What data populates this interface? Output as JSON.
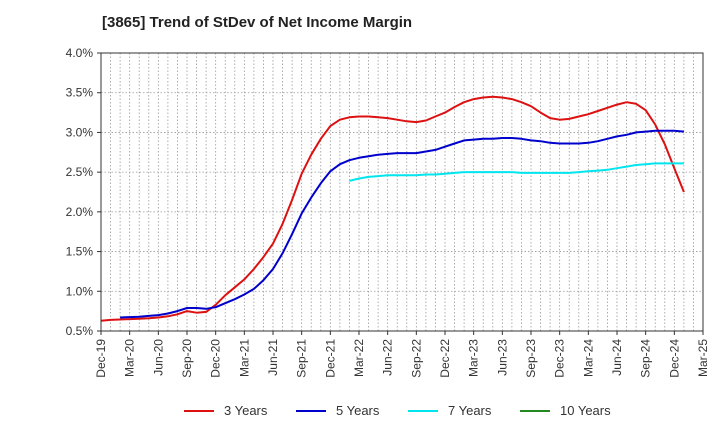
{
  "chart_data": {
    "type": "line",
    "title": "[3865]  Trend of StDev of Net Income Margin",
    "xlabel": "",
    "ylabel": "",
    "x_ticks": [
      "Dec-19",
      "Mar-20",
      "Jun-20",
      "Sep-20",
      "Dec-20",
      "Mar-21",
      "Jun-21",
      "Sep-21",
      "Dec-21",
      "Mar-22",
      "Jun-22",
      "Sep-22",
      "Dec-22",
      "Mar-23",
      "Jun-23",
      "Sep-23",
      "Dec-23",
      "Mar-24",
      "Jun-24",
      "Sep-24",
      "Dec-24",
      "Mar-25"
    ],
    "y_ticks": [
      "0.5%",
      "1.0%",
      "1.5%",
      "2.0%",
      "2.5%",
      "3.0%",
      "3.5%",
      "4.0%"
    ],
    "y_tick_values": [
      0.5,
      1.0,
      1.5,
      2.0,
      2.5,
      3.0,
      3.5,
      4.0
    ],
    "ylim": [
      0.5,
      4.0
    ],
    "grid": true,
    "legend_position": "bottom",
    "series": [
      {
        "name": "3 Years",
        "color": "#dd1111",
        "points": [
          [
            "Dec-19",
            0.63
          ],
          [
            "Jan-20",
            0.64
          ],
          [
            "Feb-20",
            0.645
          ],
          [
            "Mar-20",
            0.65
          ],
          [
            "Apr-20",
            0.655
          ],
          [
            "May-20",
            0.66
          ],
          [
            "Jun-20",
            0.67
          ],
          [
            "Jul-20",
            0.685
          ],
          [
            "Aug-20",
            0.71
          ],
          [
            "Sep-20",
            0.75
          ],
          [
            "Oct-20",
            0.73
          ],
          [
            "Nov-20",
            0.74
          ],
          [
            "Dec-20",
            0.83
          ],
          [
            "Jan-21",
            0.95
          ],
          [
            "Feb-21",
            1.05
          ],
          [
            "Mar-21",
            1.15
          ],
          [
            "Apr-21",
            1.28
          ],
          [
            "May-21",
            1.43
          ],
          [
            "Jun-21",
            1.6
          ],
          [
            "Jul-21",
            1.85
          ],
          [
            "Aug-21",
            2.15
          ],
          [
            "Sep-21",
            2.48
          ],
          [
            "Oct-21",
            2.72
          ],
          [
            "Nov-21",
            2.92
          ],
          [
            "Dec-21",
            3.08
          ],
          [
            "Jan-22",
            3.16
          ],
          [
            "Feb-22",
            3.19
          ],
          [
            "Mar-22",
            3.2
          ],
          [
            "Apr-22",
            3.2
          ],
          [
            "May-22",
            3.19
          ],
          [
            "Jun-22",
            3.18
          ],
          [
            "Jul-22",
            3.16
          ],
          [
            "Aug-22",
            3.14
          ],
          [
            "Sep-22",
            3.13
          ],
          [
            "Oct-22",
            3.15
          ],
          [
            "Nov-22",
            3.2
          ],
          [
            "Dec-22",
            3.25
          ],
          [
            "Jan-23",
            3.32
          ],
          [
            "Feb-23",
            3.38
          ],
          [
            "Mar-23",
            3.42
          ],
          [
            "Apr-23",
            3.44
          ],
          [
            "May-23",
            3.45
          ],
          [
            "Jun-23",
            3.44
          ],
          [
            "Jul-23",
            3.42
          ],
          [
            "Aug-23",
            3.38
          ],
          [
            "Sep-23",
            3.33
          ],
          [
            "Oct-23",
            3.25
          ],
          [
            "Nov-23",
            3.18
          ],
          [
            "Dec-23",
            3.16
          ],
          [
            "Jan-24",
            3.17
          ],
          [
            "Feb-24",
            3.2
          ],
          [
            "Mar-24",
            3.23
          ],
          [
            "Apr-24",
            3.27
          ],
          [
            "May-24",
            3.31
          ],
          [
            "Jun-24",
            3.35
          ],
          [
            "Jul-24",
            3.38
          ],
          [
            "Aug-24",
            3.36
          ],
          [
            "Sep-24",
            3.28
          ],
          [
            "Oct-24",
            3.1
          ],
          [
            "Nov-24",
            2.85
          ],
          [
            "Dec-24",
            2.55
          ],
          [
            "Jan-25",
            2.25
          ]
        ]
      },
      {
        "name": "5 Years",
        "color": "#0000cc",
        "points": [
          [
            "Feb-20",
            0.67
          ],
          [
            "Mar-20",
            0.675
          ],
          [
            "Apr-20",
            0.68
          ],
          [
            "May-20",
            0.69
          ],
          [
            "Jun-20",
            0.7
          ],
          [
            "Jul-20",
            0.72
          ],
          [
            "Aug-20",
            0.75
          ],
          [
            "Sep-20",
            0.79
          ],
          [
            "Oct-20",
            0.79
          ],
          [
            "Nov-20",
            0.78
          ],
          [
            "Dec-20",
            0.8
          ],
          [
            "Jan-21",
            0.85
          ],
          [
            "Feb-21",
            0.9
          ],
          [
            "Mar-21",
            0.96
          ],
          [
            "Apr-21",
            1.03
          ],
          [
            "May-21",
            1.14
          ],
          [
            "Jun-21",
            1.28
          ],
          [
            "Jul-21",
            1.48
          ],
          [
            "Aug-21",
            1.72
          ],
          [
            "Sep-21",
            1.98
          ],
          [
            "Oct-21",
            2.18
          ],
          [
            "Nov-21",
            2.36
          ],
          [
            "Dec-21",
            2.51
          ],
          [
            "Jan-22",
            2.6
          ],
          [
            "Feb-22",
            2.65
          ],
          [
            "Mar-22",
            2.68
          ],
          [
            "Apr-22",
            2.7
          ],
          [
            "May-22",
            2.72
          ],
          [
            "Jun-22",
            2.73
          ],
          [
            "Jul-22",
            2.74
          ],
          [
            "Aug-22",
            2.74
          ],
          [
            "Sep-22",
            2.74
          ],
          [
            "Oct-22",
            2.76
          ],
          [
            "Nov-22",
            2.78
          ],
          [
            "Dec-22",
            2.82
          ],
          [
            "Jan-23",
            2.86
          ],
          [
            "Feb-23",
            2.9
          ],
          [
            "Mar-23",
            2.91
          ],
          [
            "Apr-23",
            2.92
          ],
          [
            "May-23",
            2.92
          ],
          [
            "Jun-23",
            2.93
          ],
          [
            "Jul-23",
            2.93
          ],
          [
            "Aug-23",
            2.92
          ],
          [
            "Sep-23",
            2.9
          ],
          [
            "Oct-23",
            2.89
          ],
          [
            "Nov-23",
            2.87
          ],
          [
            "Dec-23",
            2.86
          ],
          [
            "Jan-24",
            2.86
          ],
          [
            "Feb-24",
            2.86
          ],
          [
            "Mar-24",
            2.87
          ],
          [
            "Apr-24",
            2.89
          ],
          [
            "May-24",
            2.92
          ],
          [
            "Jun-24",
            2.95
          ],
          [
            "Jul-24",
            2.97
          ],
          [
            "Aug-24",
            3.0
          ],
          [
            "Sep-24",
            3.01
          ],
          [
            "Oct-24",
            3.02
          ],
          [
            "Nov-24",
            3.02
          ],
          [
            "Dec-24",
            3.02
          ],
          [
            "Jan-25",
            3.01
          ]
        ]
      },
      {
        "name": "7 Years",
        "color": "#00e5ee",
        "points": [
          [
            "Feb-22",
            2.39
          ],
          [
            "Mar-22",
            2.42
          ],
          [
            "Apr-22",
            2.44
          ],
          [
            "May-22",
            2.45
          ],
          [
            "Jun-22",
            2.46
          ],
          [
            "Jul-22",
            2.46
          ],
          [
            "Aug-22",
            2.46
          ],
          [
            "Sep-22",
            2.46
          ],
          [
            "Oct-22",
            2.47
          ],
          [
            "Nov-22",
            2.47
          ],
          [
            "Dec-22",
            2.48
          ],
          [
            "Jan-23",
            2.49
          ],
          [
            "Feb-23",
            2.5
          ],
          [
            "Mar-23",
            2.5
          ],
          [
            "Apr-23",
            2.5
          ],
          [
            "May-23",
            2.5
          ],
          [
            "Jun-23",
            2.5
          ],
          [
            "Jul-23",
            2.5
          ],
          [
            "Aug-23",
            2.49
          ],
          [
            "Sep-23",
            2.49
          ],
          [
            "Oct-23",
            2.49
          ],
          [
            "Nov-23",
            2.49
          ],
          [
            "Dec-23",
            2.49
          ],
          [
            "Jan-24",
            2.49
          ],
          [
            "Feb-24",
            2.5
          ],
          [
            "Mar-24",
            2.51
          ],
          [
            "Apr-24",
            2.52
          ],
          [
            "May-24",
            2.53
          ],
          [
            "Jun-24",
            2.55
          ],
          [
            "Jul-24",
            2.57
          ],
          [
            "Aug-24",
            2.59
          ],
          [
            "Sep-24",
            2.6
          ],
          [
            "Oct-24",
            2.61
          ],
          [
            "Nov-24",
            2.61
          ],
          [
            "Dec-24",
            2.61
          ],
          [
            "Jan-25",
            2.61
          ]
        ]
      },
      {
        "name": "10 Years",
        "color": "#228822",
        "points": []
      }
    ]
  }
}
